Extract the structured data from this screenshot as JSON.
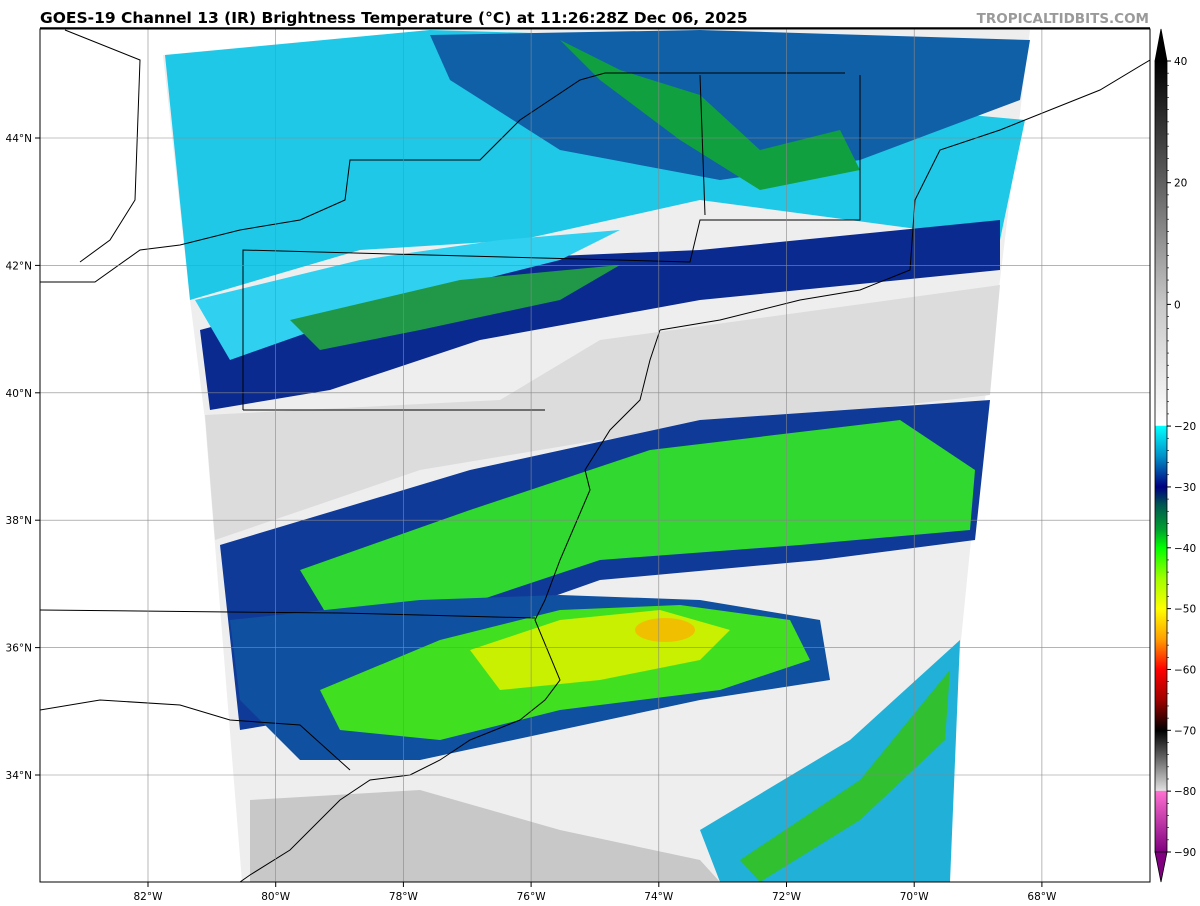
{
  "title": "GOES-19 Channel 13 (IR) Brightness Temperature (°C) at 11:26:28Z Dec 06, 2025",
  "watermark": "TROPICALTIDBITS.COM",
  "map": {
    "lat_labels": [
      {
        "value": 44,
        "label": "44°N"
      },
      {
        "value": 42,
        "label": "42°N"
      },
      {
        "value": 40,
        "label": "40°N"
      },
      {
        "value": 38,
        "label": "38°N"
      },
      {
        "value": 36,
        "label": "36°N"
      },
      {
        "value": 34,
        "label": "34°N"
      }
    ],
    "lon_labels": [
      {
        "value": -82,
        "label": "82°W"
      },
      {
        "value": -80,
        "label": "80°W"
      },
      {
        "value": -78,
        "label": "78°W"
      },
      {
        "value": -76,
        "label": "76°W"
      },
      {
        "value": -74,
        "label": "74°W"
      },
      {
        "value": -72,
        "label": "72°W"
      },
      {
        "value": -70,
        "label": "70°W"
      },
      {
        "value": -68,
        "label": "68°W"
      }
    ],
    "gridlines": true
  },
  "colorbar": {
    "range": [
      -90,
      40
    ],
    "extend": "both",
    "ticks": [
      {
        "value": 40,
        "label": "40"
      },
      {
        "value": 20,
        "label": "20"
      },
      {
        "value": 0,
        "label": "0"
      },
      {
        "value": -20,
        "label": "−20"
      },
      {
        "value": -30,
        "label": "−30"
      },
      {
        "value": -40,
        "label": "−40"
      },
      {
        "value": -50,
        "label": "−50"
      },
      {
        "value": -60,
        "label": "−60"
      },
      {
        "value": -70,
        "label": "−70"
      },
      {
        "value": -80,
        "label": "−80"
      },
      {
        "value": -90,
        "label": "−90"
      }
    ],
    "stops": [
      {
        "value": 40,
        "color": "#000000"
      },
      {
        "value": 20,
        "color": "#606060"
      },
      {
        "value": 0,
        "color": "#c8c8c8"
      },
      {
        "value": -19.9,
        "color": "#ffffff"
      },
      {
        "value": -20,
        "color": "#00ffff"
      },
      {
        "value": -25,
        "color": "#0090c8"
      },
      {
        "value": -30,
        "color": "#000080"
      },
      {
        "value": -33,
        "color": "#005850"
      },
      {
        "value": -37,
        "color": "#00a030"
      },
      {
        "value": -40,
        "color": "#00ff00"
      },
      {
        "value": -45,
        "color": "#a0ff00"
      },
      {
        "value": -50,
        "color": "#ffff00"
      },
      {
        "value": -55,
        "color": "#ffa000"
      },
      {
        "value": -60,
        "color": "#ff0000"
      },
      {
        "value": -65,
        "color": "#a00000"
      },
      {
        "value": -70,
        "color": "#000000"
      },
      {
        "value": -75,
        "color": "#707070"
      },
      {
        "value": -79.9,
        "color": "#e0e0e0"
      },
      {
        "value": -80,
        "color": "#ff70d0"
      },
      {
        "value": -90,
        "color": "#800080"
      }
    ]
  }
}
